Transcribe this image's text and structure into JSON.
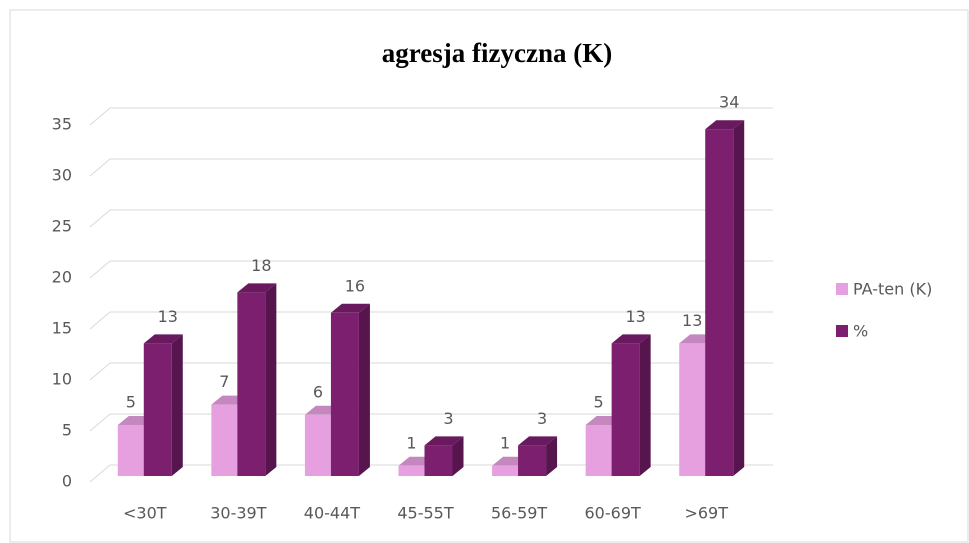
{
  "chart_data": {
    "type": "bar3d",
    "title": "agresja fizyczna (K)",
    "categories": [
      "<30T",
      "30-39T",
      "40-44T",
      "45-55T",
      "56-59T",
      "60-69T",
      ">69T"
    ],
    "series": [
      {
        "name": "PA-ten (K)",
        "color": "#e6a0e0",
        "values": [
          5,
          7,
          6,
          1,
          1,
          5,
          13
        ]
      },
      {
        "name": "%",
        "color": "#7b1f6e",
        "values": [
          13,
          18,
          16,
          3,
          3,
          13,
          34
        ]
      }
    ],
    "ylim": [
      0,
      35
    ],
    "yticks": [
      0,
      5,
      10,
      15,
      20,
      25,
      30,
      35
    ],
    "grid": true,
    "legend": "right"
  }
}
